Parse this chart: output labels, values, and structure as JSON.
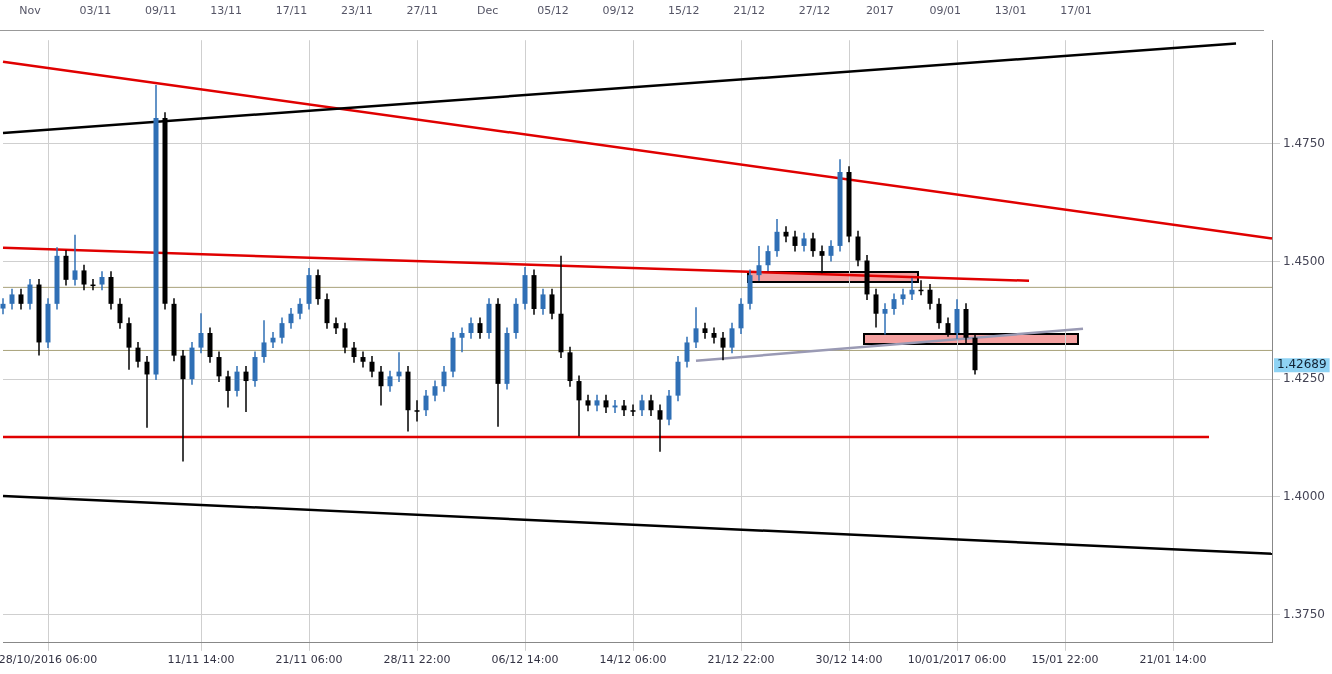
{
  "chart_data": {
    "type": "candlestick",
    "categories": [
      null,
      null,
      null,
      null,
      null,
      "28/10/2016 06:00",
      null,
      null,
      null,
      null,
      null,
      null,
      null,
      null,
      null,
      null,
      null,
      null,
      null,
      null,
      null,
      null,
      "11/11 14:00",
      null,
      null,
      null,
      null,
      null,
      null,
      null,
      null,
      null,
      null,
      null,
      "21/11 06:00",
      null,
      null,
      null,
      null,
      null,
      null,
      null,
      null,
      null,
      null,
      null,
      "28/11 22:00",
      null,
      null,
      null,
      null,
      null,
      null,
      null,
      null,
      null,
      null,
      null,
      "06/12 14:00",
      null,
      null,
      null,
      null,
      null,
      null,
      null,
      null,
      null,
      null,
      null,
      "14/12 06:00",
      null,
      null,
      null,
      null,
      null,
      null,
      null,
      null,
      null,
      null,
      null,
      "21/12 22:00",
      null,
      null,
      null,
      null,
      null,
      null,
      null,
      null,
      null,
      null,
      null,
      "30/12 14:00",
      null,
      null,
      null,
      null,
      null,
      null,
      null,
      null,
      null,
      null,
      null,
      "10/01/2017 06:00",
      null,
      null,
      null,
      null,
      null,
      null,
      null,
      null,
      null,
      null,
      null,
      "15/01 22:00",
      null,
      null,
      null,
      null,
      null,
      null,
      null,
      null,
      null,
      null,
      null,
      "21/01 14:00",
      null,
      null,
      null,
      null,
      null,
      null,
      null,
      null,
      null,
      null,
      null
    ],
    "ohlc": [
      [
        1.44,
        1.4422,
        1.4388,
        1.441
      ],
      [
        1.441,
        1.4442,
        1.4398,
        1.443
      ],
      [
        1.443,
        1.4442,
        1.4398,
        1.441
      ],
      [
        1.441,
        1.4463,
        1.4398,
        1.4451
      ],
      [
        1.4451,
        1.4463,
        1.43,
        1.4328
      ],
      [
        1.4328,
        1.4422,
        1.4316,
        1.441
      ],
      [
        1.441,
        1.453,
        1.4398,
        1.4512
      ],
      [
        1.4512,
        1.4524,
        1.4449,
        1.4461
      ],
      [
        1.4461,
        1.4557,
        1.4449,
        1.4481
      ],
      [
        1.4481,
        1.4493,
        1.4439,
        1.4451
      ],
      [
        1.4451,
        1.4463,
        1.4439,
        1.4451
      ],
      [
        1.4451,
        1.4479,
        1.4439,
        1.4467
      ],
      [
        1.4467,
        1.4479,
        1.4398,
        1.441
      ],
      [
        1.441,
        1.4422,
        1.4357,
        1.4369
      ],
      [
        1.4369,
        1.4381,
        1.427,
        1.4317
      ],
      [
        1.4317,
        1.4329,
        1.4275,
        1.4287
      ],
      [
        1.4287,
        1.4299,
        1.4147,
        1.426
      ],
      [
        1.426,
        1.4875,
        1.4248,
        1.4805
      ],
      [
        1.4805,
        1.4817,
        1.4398,
        1.441
      ],
      [
        1.441,
        1.4422,
        1.4288,
        1.43
      ],
      [
        1.43,
        1.4312,
        1.4075,
        1.425
      ],
      [
        1.425,
        1.4329,
        1.4238,
        1.4317
      ],
      [
        1.4317,
        1.439,
        1.4305,
        1.4348
      ],
      [
        1.4348,
        1.436,
        1.4285,
        1.4297
      ],
      [
        1.4297,
        1.4309,
        1.4244,
        1.4256
      ],
      [
        1.4256,
        1.4268,
        1.419,
        1.4225
      ],
      [
        1.4225,
        1.4278,
        1.4213,
        1.4266
      ],
      [
        1.4266,
        1.4278,
        1.418,
        1.4246
      ],
      [
        1.4246,
        1.4309,
        1.4234,
        1.4297
      ],
      [
        1.4297,
        1.4375,
        1.4285,
        1.4328
      ],
      [
        1.4328,
        1.435,
        1.4316,
        1.4338
      ],
      [
        1.4338,
        1.4381,
        1.4326,
        1.4369
      ],
      [
        1.4369,
        1.4401,
        1.4357,
        1.4389
      ],
      [
        1.4389,
        1.4422,
        1.4377,
        1.441
      ],
      [
        1.441,
        1.4486,
        1.4398,
        1.4471
      ],
      [
        1.4471,
        1.4483,
        1.4408,
        1.442
      ],
      [
        1.442,
        1.4432,
        1.4357,
        1.4369
      ],
      [
        1.4369,
        1.4381,
        1.4346,
        1.4358
      ],
      [
        1.4358,
        1.437,
        1.4305,
        1.4317
      ],
      [
        1.4317,
        1.4329,
        1.4285,
        1.4297
      ],
      [
        1.4297,
        1.4309,
        1.4275,
        1.4287
      ],
      [
        1.4287,
        1.4299,
        1.4254,
        1.4266
      ],
      [
        1.4266,
        1.4278,
        1.4194,
        1.4235
      ],
      [
        1.4235,
        1.4268,
        1.4223,
        1.4256
      ],
      [
        1.4256,
        1.4307,
        1.4244,
        1.4266
      ],
      [
        1.4266,
        1.4278,
        1.4139,
        1.4184
      ],
      [
        1.4184,
        1.4205,
        1.416,
        1.4184
      ],
      [
        1.4184,
        1.4227,
        1.4172,
        1.4215
      ],
      [
        1.4215,
        1.4247,
        1.4203,
        1.4235
      ],
      [
        1.4235,
        1.4278,
        1.4223,
        1.4266
      ],
      [
        1.4266,
        1.435,
        1.4254,
        1.4338
      ],
      [
        1.4338,
        1.436,
        1.4307,
        1.4348
      ],
      [
        1.4348,
        1.4381,
        1.4336,
        1.4369
      ],
      [
        1.4369,
        1.4381,
        1.4336,
        1.4348
      ],
      [
        1.4348,
        1.4422,
        1.4336,
        1.441
      ],
      [
        1.441,
        1.4422,
        1.4149,
        1.424
      ],
      [
        1.424,
        1.436,
        1.4228,
        1.4348
      ],
      [
        1.4348,
        1.4422,
        1.4336,
        1.441
      ],
      [
        1.441,
        1.4488,
        1.4398,
        1.4471
      ],
      [
        1.4471,
        1.4483,
        1.4387,
        1.4399
      ],
      [
        1.4399,
        1.4442,
        1.4387,
        1.443
      ],
      [
        1.443,
        1.4442,
        1.4377,
        1.4389
      ],
      [
        1.4389,
        1.4512,
        1.4295,
        1.4307
      ],
      [
        1.4307,
        1.4319,
        1.4234,
        1.4246
      ],
      [
        1.4246,
        1.4258,
        1.4129,
        1.4205
      ],
      [
        1.4205,
        1.4217,
        1.4182,
        1.4194
      ],
      [
        1.4194,
        1.4217,
        1.4182,
        1.4205
      ],
      [
        1.4205,
        1.4217,
        1.4178,
        1.419
      ],
      [
        1.419,
        1.4206,
        1.4178,
        1.4194
      ],
      [
        1.4194,
        1.4206,
        1.4172,
        1.4184
      ],
      [
        1.4184,
        1.4196,
        1.4172,
        1.4184
      ],
      [
        1.4184,
        1.4217,
        1.4172,
        1.4205
      ],
      [
        1.4205,
        1.4217,
        1.4172,
        1.4184
      ],
      [
        1.4184,
        1.4196,
        1.4096,
        1.4164
      ],
      [
        1.4164,
        1.4227,
        1.4152,
        1.4215
      ],
      [
        1.4215,
        1.4299,
        1.4203,
        1.4287
      ],
      [
        1.4287,
        1.434,
        1.4275,
        1.4328
      ],
      [
        1.4328,
        1.4403,
        1.4316,
        1.4358
      ],
      [
        1.4358,
        1.437,
        1.4336,
        1.4348
      ],
      [
        1.4348,
        1.436,
        1.4326,
        1.4338
      ],
      [
        1.4338,
        1.435,
        1.429,
        1.4317
      ],
      [
        1.4317,
        1.437,
        1.4305,
        1.4358
      ],
      [
        1.4358,
        1.4422,
        1.4346,
        1.441
      ],
      [
        1.441,
        1.4483,
        1.4398,
        1.4471
      ],
      [
        1.4471,
        1.4533,
        1.4459,
        1.4492
      ],
      [
        1.4492,
        1.4534,
        1.448,
        1.4522
      ],
      [
        1.4522,
        1.459,
        1.451,
        1.4563
      ],
      [
        1.4563,
        1.4575,
        1.4541,
        1.4553
      ],
      [
        1.4553,
        1.4565,
        1.4521,
        1.4533
      ],
      [
        1.4533,
        1.4561,
        1.4521,
        1.4549
      ],
      [
        1.4549,
        1.4561,
        1.451,
        1.4522
      ],
      [
        1.4522,
        1.4534,
        1.4475,
        1.4512
      ],
      [
        1.4512,
        1.4545,
        1.45,
        1.4533
      ],
      [
        1.4533,
        1.4717,
        1.4521,
        1.469
      ],
      [
        1.469,
        1.4702,
        1.4541,
        1.4553
      ],
      [
        1.4553,
        1.4565,
        1.449,
        1.4502
      ],
      [
        1.4502,
        1.4514,
        1.4418,
        1.443
      ],
      [
        1.443,
        1.4442,
        1.436,
        1.4389
      ],
      [
        1.4389,
        1.4411,
        1.4345,
        1.4399
      ],
      [
        1.4399,
        1.4432,
        1.4387,
        1.442
      ],
      [
        1.442,
        1.4442,
        1.4408,
        1.443
      ],
      [
        1.443,
        1.4465,
        1.4418,
        1.444
      ],
      [
        1.444,
        1.446,
        1.4428,
        1.444
      ],
      [
        1.444,
        1.4452,
        1.4398,
        1.441
      ],
      [
        1.441,
        1.4422,
        1.4357,
        1.4369
      ],
      [
        1.4369,
        1.4381,
        1.434,
        1.4348
      ],
      [
        1.4348,
        1.442,
        1.4336,
        1.4399
      ],
      [
        1.4399,
        1.4411,
        1.4326,
        1.4338
      ],
      [
        1.4338,
        1.4345,
        1.426,
        1.4269
      ],
      null,
      null,
      null,
      null,
      null,
      null,
      null,
      null,
      null,
      null,
      null,
      null,
      null,
      null,
      null,
      null,
      null,
      null,
      null,
      null,
      null,
      null,
      null,
      null,
      null,
      null,
      null,
      null,
      null,
      null,
      null,
      null,
      null
    ],
    "colors": [
      "#2f6fb5",
      "#2f6fb5",
      "#000000",
      "#2f6fb5",
      "#000000",
      "#2f6fb5",
      "#2f6fb5",
      "#000000",
      "#2f6fb5",
      "#000000",
      "#000000",
      "#2f6fb5",
      "#000000",
      "#000000",
      "#000000",
      "#000000",
      "#000000",
      "#2f6fb5",
      "#000000",
      "#000000",
      "#000000",
      "#2f6fb5",
      "#2f6fb5",
      "#000000",
      "#000000",
      "#000000",
      "#2f6fb5",
      "#000000",
      "#2f6fb5",
      "#2f6fb5",
      "#2f6fb5",
      "#2f6fb5",
      "#2f6fb5",
      "#2f6fb5",
      "#2f6fb5",
      "#000000",
      "#000000",
      "#000000",
      "#000000",
      "#000000",
      "#000000",
      "#000000",
      "#000000",
      "#2f6fb5",
      "#2f6fb5",
      "#000000",
      "#000000",
      "#2f6fb5",
      "#2f6fb5",
      "#2f6fb5",
      "#2f6fb5",
      "#2f6fb5",
      "#2f6fb5",
      "#000000",
      "#2f6fb5",
      "#000000",
      "#2f6fb5",
      "#2f6fb5",
      "#2f6fb5",
      "#000000",
      "#2f6fb5",
      "#000000",
      "#000000",
      "#000000",
      "#000000",
      "#000000",
      "#2f6fb5",
      "#000000",
      "#2f6fb5",
      "#000000",
      "#000000",
      "#2f6fb5",
      "#000000",
      "#000000",
      "#2f6fb5",
      "#2f6fb5",
      "#2f6fb5",
      "#2f6fb5",
      "#000000",
      "#000000",
      "#000000",
      "#2f6fb5",
      "#2f6fb5",
      "#2f6fb5",
      "#2f6fb5",
      "#2f6fb5",
      "#2f6fb5",
      "#000000",
      "#000000",
      "#2f6fb5",
      "#000000",
      "#000000",
      "#2f6fb5",
      "#2f6fb5",
      "#000000",
      "#000000",
      "#000000",
      "#000000",
      "#2f6fb5",
      "#2f6fb5",
      "#2f6fb5",
      "#2f6fb5",
      "#000000",
      "#000000",
      "#000000",
      "#000000",
      "#2f6fb5",
      "#000000",
      "#000000",
      null,
      null,
      null,
      null,
      null,
      null,
      null,
      null,
      null,
      null,
      null,
      null,
      null,
      null,
      null,
      null,
      null,
      null,
      null,
      null,
      null,
      null,
      null,
      null,
      null,
      null,
      null,
      null,
      null,
      null,
      null,
      null,
      null
    ],
    "series": [
      {
        "type": "line",
        "color": "#000000",
        "values": [
          1.4773,
          null,
          null,
          null,
          null,
          null,
          null,
          null,
          null,
          null,
          null,
          null,
          null,
          null,
          null,
          null,
          null,
          null,
          null,
          null,
          null,
          null,
          null,
          null,
          null,
          null,
          null,
          null,
          null,
          null,
          null,
          null,
          null,
          null,
          null,
          null,
          null,
          null,
          null,
          null,
          null,
          null,
          null,
          null,
          null,
          null,
          null,
          null,
          null,
          null,
          null,
          null,
          null,
          null,
          null,
          null,
          null,
          null,
          null,
          null,
          null,
          null,
          null,
          null,
          null,
          null,
          null,
          null,
          null,
          null,
          null,
          null,
          null,
          null,
          null,
          null,
          null,
          null,
          null,
          null,
          null,
          null,
          null,
          null,
          null,
          null,
          null,
          null,
          null,
          null,
          null,
          null,
          null,
          null,
          null,
          null,
          null,
          null,
          null,
          null,
          null,
          null,
          null,
          null,
          null,
          null,
          null,
          null,
          null,
          null,
          null,
          null,
          null,
          null,
          null,
          null,
          null,
          null,
          null,
          null,
          null,
          null,
          null,
          null,
          null,
          null,
          null,
          null,
          null,
          null,
          null,
          null,
          null,
          null,
          null,
          null,
          null,
          1.4963,
          null,
          null,
          null,
          null
        ]
      },
      {
        "type": "line",
        "color": "#e00000",
        "values": [
          1.4924,
          null,
          null,
          null,
          null,
          null,
          null,
          null,
          null,
          null,
          null,
          null,
          null,
          null,
          null,
          null,
          null,
          null,
          null,
          null,
          null,
          null,
          null,
          null,
          null,
          null,
          null,
          null,
          null,
          null,
          null,
          null,
          null,
          null,
          null,
          null,
          null,
          null,
          null,
          null,
          null,
          null,
          null,
          null,
          null,
          null,
          null,
          null,
          null,
          null,
          null,
          null,
          null,
          null,
          null,
          null,
          null,
          null,
          null,
          null,
          null,
          null,
          null,
          null,
          null,
          null,
          null,
          null,
          null,
          null,
          null,
          null,
          null,
          null,
          null,
          null,
          null,
          null,
          null,
          null,
          null,
          null,
          null,
          null,
          null,
          null,
          null,
          null,
          null,
          null,
          null,
          null,
          null,
          null,
          null,
          null,
          null,
          null,
          null,
          null,
          null,
          null,
          null,
          null,
          null,
          null,
          null,
          null,
          null,
          null,
          null,
          null,
          null,
          null,
          null,
          null,
          null,
          null,
          null,
          null,
          null,
          null,
          null,
          null,
          null,
          null,
          null,
          null,
          null,
          null,
          null,
          null,
          null,
          null,
          null,
          null,
          null,
          null,
          null,
          null,
          null,
          1.4549
        ]
      },
      {
        "type": "line",
        "color": "#000000",
        "values": [
          1.4002,
          null,
          null,
          null,
          null,
          null,
          null,
          null,
          null,
          null,
          null,
          null,
          null,
          null,
          null,
          null,
          null,
          null,
          null,
          null,
          null,
          null,
          null,
          null,
          null,
          null,
          null,
          null,
          null,
          null,
          null,
          null,
          null,
          null,
          null,
          null,
          null,
          null,
          null,
          null,
          null,
          null,
          null,
          null,
          null,
          null,
          null,
          null,
          null,
          null,
          null,
          null,
          null,
          null,
          null,
          null,
          null,
          null,
          null,
          null,
          null,
          null,
          null,
          null,
          null,
          null,
          null,
          null,
          null,
          null,
          null,
          null,
          null,
          null,
          null,
          null,
          null,
          null,
          null,
          null,
          null,
          null,
          null,
          null,
          null,
          null,
          null,
          null,
          null,
          null,
          null,
          null,
          null,
          null,
          null,
          null,
          null,
          null,
          null,
          null,
          null,
          null,
          null,
          null,
          null,
          null,
          null,
          null,
          null,
          null,
          null,
          null,
          null,
          null,
          null,
          null,
          null,
          null,
          null,
          null,
          null,
          null,
          null,
          null,
          null,
          null,
          null,
          null,
          null,
          null,
          null,
          null,
          null,
          null,
          null,
          null,
          null,
          null,
          null,
          null,
          null,
          1.3879
        ]
      },
      {
        "type": "line",
        "color": "#e00000",
        "values": [
          1.4529,
          null,
          null,
          null,
          null,
          null,
          null,
          null,
          null,
          null,
          null,
          null,
          null,
          null,
          null,
          null,
          null,
          null,
          null,
          null,
          null,
          null,
          null,
          null,
          null,
          null,
          null,
          null,
          null,
          null,
          null,
          null,
          null,
          null,
          null,
          null,
          null,
          null,
          null,
          null,
          null,
          null,
          null,
          null,
          null,
          null,
          null,
          null,
          null,
          null,
          null,
          null,
          null,
          null,
          null,
          null,
          null,
          null,
          null,
          null,
          null,
          null,
          null,
          null,
          null,
          null,
          null,
          null,
          null,
          null,
          null,
          null,
          null,
          null,
          null,
          null,
          null,
          null,
          null,
          null,
          null,
          null,
          null,
          null,
          null,
          null,
          null,
          null,
          null,
          null,
          null,
          null,
          null,
          null,
          null,
          null,
          null,
          null,
          null,
          null,
          null,
          null,
          null,
          null,
          null,
          null,
          null,
          null,
          null,
          null,
          null,
          null,
          null,
          null,
          1.4459,
          null,
          null,
          null,
          null,
          null,
          null,
          null,
          null,
          null,
          null,
          null,
          null,
          null,
          null,
          null,
          null,
          null,
          null,
          null,
          null,
          null,
          null,
          null,
          null,
          null,
          null,
          null
        ]
      },
      {
        "type": "line",
        "color": "#e00000",
        "values": [
          1.4127,
          null,
          null,
          null,
          null,
          null,
          null,
          null,
          null,
          null,
          null,
          null,
          null,
          null,
          null,
          null,
          null,
          null,
          null,
          null,
          null,
          null,
          null,
          null,
          null,
          null,
          null,
          null,
          null,
          null,
          null,
          null,
          null,
          null,
          null,
          null,
          null,
          null,
          null,
          null,
          null,
          null,
          null,
          null,
          null,
          null,
          null,
          null,
          null,
          null,
          null,
          null,
          null,
          null,
          null,
          null,
          null,
          null,
          null,
          null,
          null,
          null,
          null,
          null,
          null,
          null,
          null,
          null,
          null,
          null,
          null,
          null,
          null,
          null,
          null,
          null,
          null,
          null,
          null,
          null,
          null,
          null,
          null,
          null,
          null,
          null,
          null,
          null,
          null,
          null,
          null,
          null,
          null,
          null,
          null,
          null,
          null,
          null,
          null,
          null,
          null,
          null,
          null,
          null,
          null,
          null,
          null,
          null,
          null,
          null,
          null,
          null,
          null,
          null,
          null,
          null,
          null,
          null,
          null,
          null,
          null,
          null,
          null,
          null,
          null,
          null,
          null,
          null,
          null,
          null,
          null,
          null,
          null,
          null,
          1.4127,
          null,
          null,
          null,
          null,
          null,
          null,
          null
        ]
      },
      {
        "type": "line",
        "color": "#9a9ab4",
        "values": [
          null,
          null,
          null,
          null,
          null,
          null,
          null,
          null,
          null,
          null,
          null,
          null,
          null,
          null,
          null,
          null,
          null,
          null,
          null,
          null,
          null,
          null,
          null,
          null,
          null,
          null,
          null,
          null,
          null,
          null,
          null,
          null,
          null,
          null,
          null,
          null,
          null,
          null,
          null,
          null,
          null,
          null,
          null,
          null,
          null,
          null,
          null,
          null,
          null,
          null,
          null,
          null,
          null,
          null,
          null,
          null,
          null,
          null,
          null,
          null,
          null,
          null,
          null,
          null,
          null,
          null,
          null,
          null,
          null,
          null,
          null,
          null,
          null,
          null,
          null,
          null,
          null,
          1.4289,
          null,
          null,
          null,
          null,
          null,
          null,
          null,
          null,
          null,
          null,
          null,
          null,
          null,
          null,
          null,
          null,
          null,
          null,
          null,
          null,
          null,
          null,
          null,
          null,
          null,
          null,
          null,
          null,
          null,
          null,
          null,
          null,
          null,
          null,
          null,
          null,
          null,
          null,
          null,
          null,
          null,
          null,
          1.4357,
          null,
          null,
          null,
          null,
          null,
          null,
          null,
          null,
          null,
          null,
          null,
          null,
          null,
          null,
          null,
          null,
          null,
          null,
          null,
          null,
          null
        ]
      }
    ],
    "ylim": [
      1.369,
      1.497
    ],
    "yticks": [
      {
        "value": 1.375,
        "label": "1.3750"
      },
      {
        "value": 1.4,
        "label": "1.4000"
      },
      {
        "value": 1.425,
        "label": "1.4250"
      },
      {
        "value": 1.45,
        "label": "1.4500"
      },
      {
        "value": 1.475,
        "label": "1.4750"
      }
    ],
    "ref_lines": [
      {
        "axis": "y",
        "value": 1.4445,
        "color": "#a8a27a"
      },
      {
        "axis": "y",
        "value": 1.4311,
        "color": "#a8a27a"
      }
    ],
    "grid": true,
    "annotations": [
      "Nov",
      "03/11",
      "09/11",
      "13/11",
      "17/11",
      "23/11",
      "27/11",
      "Dec",
      "05/12",
      "09/12",
      "15/12",
      "21/12",
      "27/12",
      "2017",
      "09/01",
      "13/01",
      "17/01",
      {
        "text": "1.42689"
      }
    ]
  }
}
